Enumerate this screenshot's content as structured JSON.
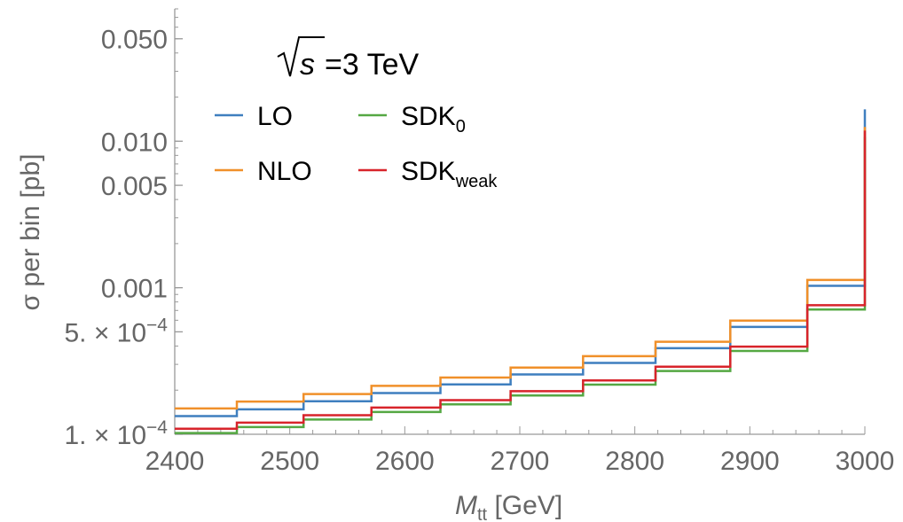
{
  "chart_data": {
    "type": "line",
    "step": true,
    "annotation": {
      "sqrt_symbol": "√",
      "variable": "s",
      "text": "=3 TeV"
    },
    "xlabel": {
      "main": "M",
      "sub": "tt",
      "unit": " [GeV]"
    },
    "ylabel": "σ per bin [pb]",
    "xlim": [
      2400,
      3000
    ],
    "ylim": [
      0.0001,
      0.08
    ],
    "yscale": "log",
    "grid": false,
    "legend_position": "top-left",
    "x_ticks": [
      {
        "value": 2400,
        "label": "2400"
      },
      {
        "value": 2500,
        "label": "2500"
      },
      {
        "value": 2600,
        "label": "2600"
      },
      {
        "value": 2700,
        "label": "2700"
      },
      {
        "value": 2800,
        "label": "2800"
      },
      {
        "value": 2900,
        "label": "2900"
      },
      {
        "value": 3000,
        "label": "3000"
      }
    ],
    "y_ticks": [
      {
        "value": 0.0001,
        "mantissa": "1. × 10",
        "exponent": "−4"
      },
      {
        "value": 0.0005,
        "mantissa": "5. × 10",
        "exponent": "−4"
      },
      {
        "value": 0.001,
        "label": "0.001"
      },
      {
        "value": 0.005,
        "label": "0.005"
      },
      {
        "value": 0.01,
        "label": "0.010"
      },
      {
        "value": 0.05,
        "label": "0.050"
      }
    ],
    "bin_edges": [
      2400,
      2454,
      2512,
      2571,
      2631,
      2692,
      2755,
      2818,
      2883,
      2950,
      3000
    ],
    "series": [
      {
        "name": "LO",
        "color": "#3f7fbf",
        "values": [
          0.000133,
          0.000148,
          0.000168,
          0.000191,
          0.000219,
          0.000256,
          0.000307,
          0.000387,
          0.00054,
          0.00103,
          0.0165
        ]
      },
      {
        "name": "NLO",
        "color": "#f0902a",
        "values": [
          0.00015,
          0.000167,
          0.000188,
          0.000214,
          0.000244,
          0.000285,
          0.000341,
          0.000428,
          0.000597,
          0.00113,
          0.0125
        ]
      },
      {
        "name": "SDK",
        "name_sub": "0",
        "color": "#55a843",
        "values": [
          0.000102,
          0.000112,
          0.000126,
          0.000142,
          0.00016,
          0.000184,
          0.000218,
          0.00027,
          0.00037,
          0.00071,
          0.0107
        ]
      },
      {
        "name": "SDK",
        "name_sub": "weak",
        "color": "#d8242b",
        "values": [
          0.000109,
          0.00012,
          0.000135,
          0.000152,
          0.000171,
          0.000197,
          0.000233,
          0.000289,
          0.000396,
          0.00076,
          0.0118
        ]
      }
    ]
  }
}
